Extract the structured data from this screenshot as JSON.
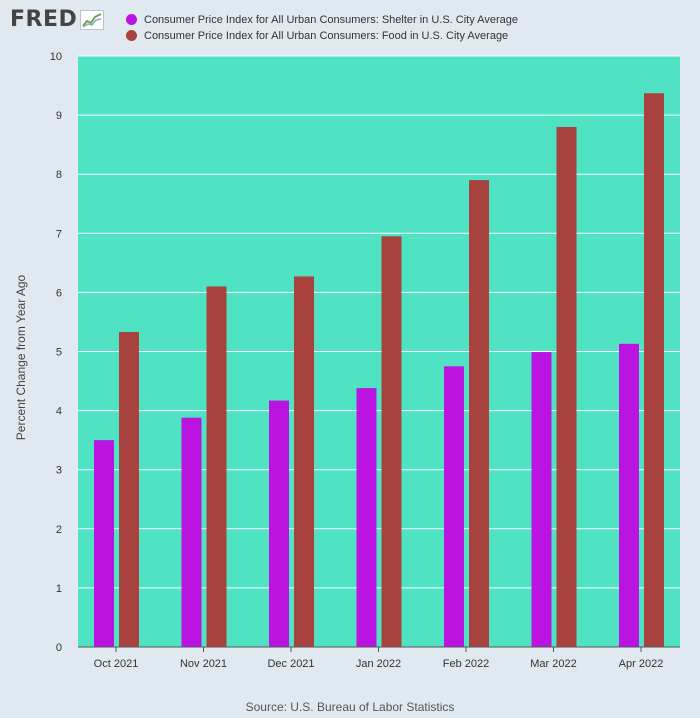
{
  "header": {
    "logo_text": "FRED",
    "logo_icon": "line-chart-icon"
  },
  "source_text": "Source: U.S. Bureau of Labor Statistics",
  "chart_data": {
    "type": "bar",
    "background_color": "#4fe3c3",
    "grid": true,
    "legend_placement": "top-left",
    "ylabel": "Percent Change from Year Ago",
    "ylim": [
      0,
      10
    ],
    "yticks": [
      0,
      1,
      2,
      3,
      4,
      5,
      6,
      7,
      8,
      9,
      10
    ],
    "categories": [
      "Oct 2021",
      "Nov 2021",
      "Dec 2021",
      "Jan 2022",
      "Feb 2022",
      "Mar 2022",
      "Apr 2022"
    ],
    "series": [
      {
        "name": "Consumer Price Index for All Urban Consumers: Shelter in U.S. City Average",
        "color": "#bb14e0",
        "values": [
          3.5,
          3.88,
          4.17,
          4.38,
          4.75,
          4.99,
          5.13
        ]
      },
      {
        "name": "Consumer Price Index for All Urban Consumers: Food in U.S. City Average",
        "color": "#a8423f",
        "values": [
          5.33,
          6.1,
          6.27,
          6.95,
          7.9,
          8.8,
          9.37
        ]
      }
    ]
  }
}
